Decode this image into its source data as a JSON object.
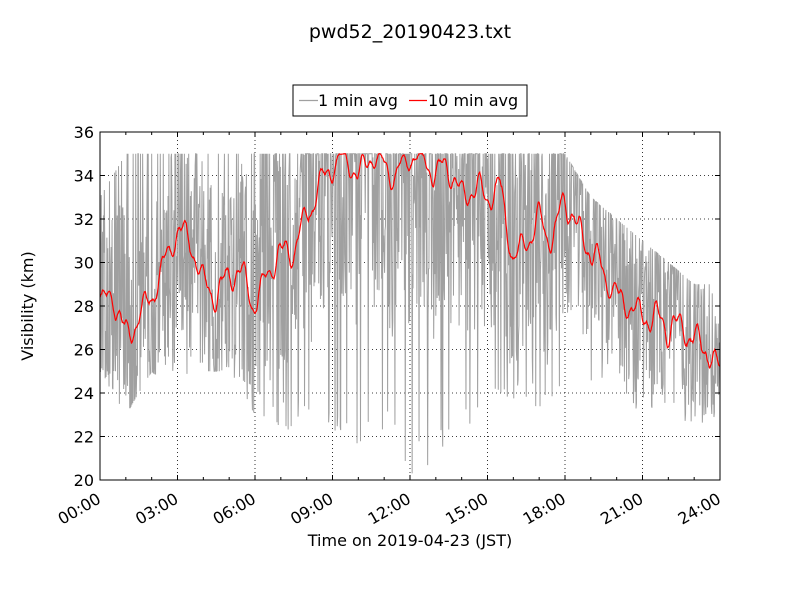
{
  "chart_data": {
    "type": "line",
    "title": "pwd52_20190423.txt",
    "xlabel": "Time on 2019-04-23 (JST)",
    "ylabel": "Visibility (km)",
    "xlim_hours": [
      0,
      24
    ],
    "ylim": [
      20,
      36
    ],
    "x_ticks": [
      "00:00",
      "03:00",
      "06:00",
      "09:00",
      "12:00",
      "15:00",
      "18:00",
      "21:00",
      "24:00"
    ],
    "y_ticks": [
      20,
      22,
      24,
      26,
      28,
      30,
      32,
      34,
      36
    ],
    "grid": true,
    "legend_position": "top-center, above plot",
    "legend_frame": true,
    "series": [
      {
        "name": "1 min avg",
        "color": "#a0a0a0",
        "sample_interval_minutes": 1,
        "cap_value": 35,
        "envelope_hours": [
          0,
          1,
          2,
          3,
          4,
          5,
          6,
          7,
          8,
          9,
          10,
          11,
          12,
          13,
          14,
          15,
          16,
          17,
          18,
          19,
          20,
          21,
          22,
          23,
          24
        ],
        "envelope_min": [
          25,
          23,
          25,
          24,
          25,
          25,
          23,
          22,
          23,
          22,
          21,
          22,
          20,
          21,
          22,
          23,
          23,
          23,
          24,
          24,
          24,
          23,
          23,
          22,
          23
        ],
        "envelope_max": [
          33,
          35,
          35,
          35,
          35,
          35,
          35,
          35,
          35,
          35,
          35,
          35,
          35,
          35,
          35,
          35,
          35,
          35,
          35,
          33,
          32,
          31,
          30,
          29,
          29
        ]
      },
      {
        "name": "10 min avg",
        "color": "#ff0000",
        "sample_interval_minutes": 10,
        "cap_value": 35,
        "x_hours": [
          0,
          0.5,
          1,
          1.5,
          2,
          2.5,
          3,
          3.5,
          4,
          4.5,
          5,
          5.5,
          6,
          6.5,
          7,
          7.5,
          8,
          8.5,
          9,
          9.5,
          10,
          10.5,
          11,
          11.5,
          12,
          12.5,
          13,
          13.5,
          14,
          14.5,
          15,
          15.5,
          16,
          16.5,
          17,
          17.5,
          18,
          18.5,
          19,
          19.5,
          20,
          20.5,
          21,
          21.5,
          22,
          22.5,
          23,
          23.5,
          24
        ],
        "y": [
          28,
          28.5,
          26.5,
          27.5,
          28.5,
          30,
          31.5,
          31,
          29,
          28.5,
          29.5,
          29.5,
          28,
          29.5,
          30.5,
          30.5,
          32,
          33.5,
          34.5,
          35,
          34,
          35,
          34.5,
          34,
          35,
          35,
          34,
          34.5,
          33,
          33.5,
          33,
          33.5,
          30,
          31,
          32,
          31,
          33,
          31.5,
          30.5,
          29.5,
          28.5,
          28,
          27.5,
          27.5,
          27,
          27,
          26.5,
          26,
          25
        ]
      }
    ]
  }
}
